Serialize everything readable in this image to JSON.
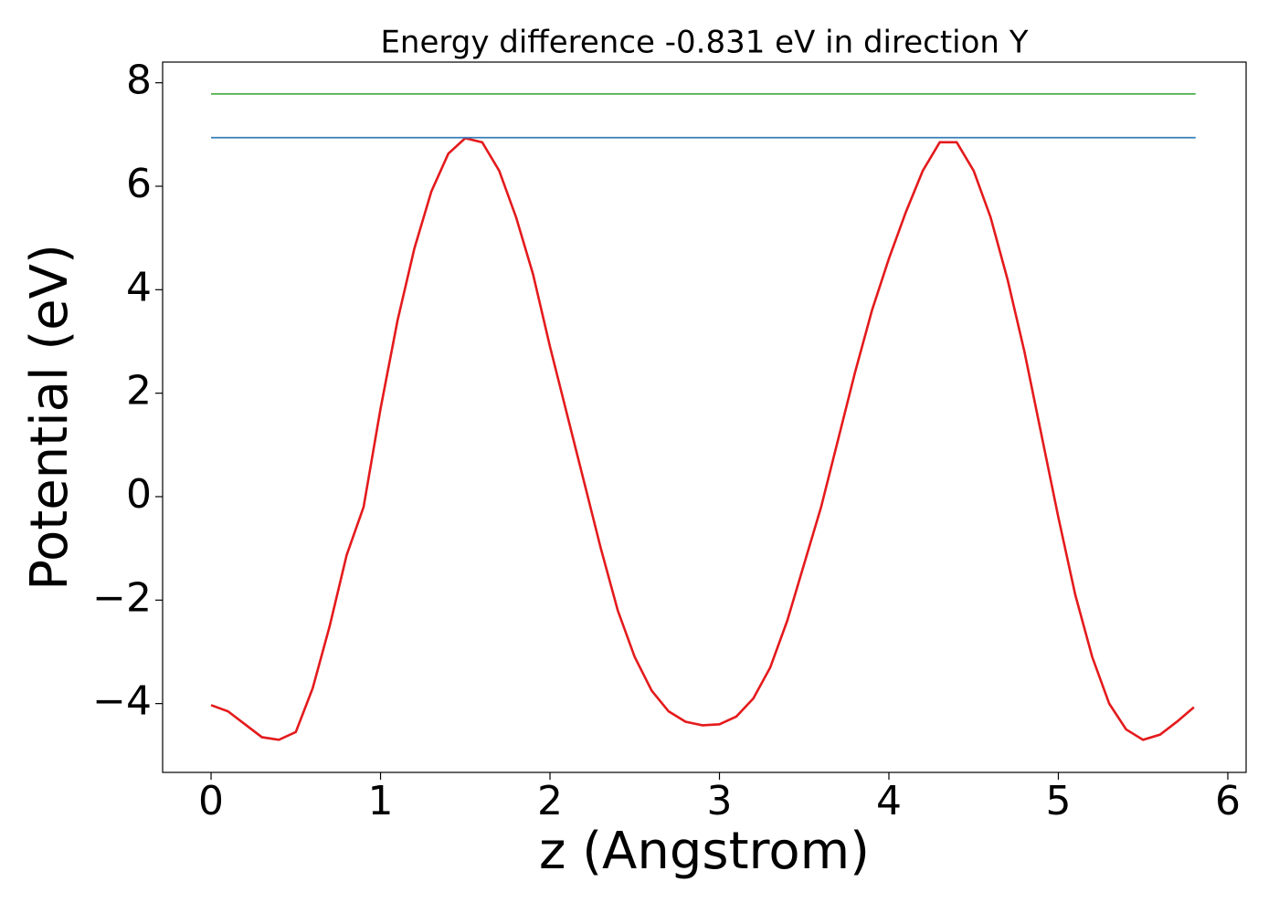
{
  "chart_data": {
    "type": "line",
    "title": "Energy difference -0.831 eV in direction Y",
    "x_label": "z (Angstrom)",
    "y_label": "Potential (eV)",
    "xlim": [
      -0.286,
      6.108
    ],
    "ylim": [
      -5.33,
      8.4
    ],
    "xticks": [
      0,
      1,
      2,
      3,
      4,
      5,
      6
    ],
    "yticks": [
      {
        "value": -4,
        "label": "−4"
      },
      {
        "value": -2,
        "label": "−2"
      },
      0,
      2,
      4,
      6,
      8
    ],
    "grid": false,
    "series": [
      {
        "color": "#e41a1c",
        "x": [
          0,
          0.1,
          0.2,
          0.3,
          0.4,
          0.5,
          0.6,
          0.7,
          0.8,
          0.9,
          1.0,
          1.1,
          1.2,
          1.3,
          1.4,
          1.5,
          1.6,
          1.7,
          1.8,
          1.9,
          2.0,
          2.1,
          2.2,
          2.3,
          2.4,
          2.5,
          2.6,
          2.7,
          2.8,
          2.9,
          3.0,
          3.1,
          3.2,
          3.3,
          3.4,
          3.5,
          3.6,
          3.7,
          3.8,
          3.9,
          4.0,
          4.1,
          4.2,
          4.3,
          4.4,
          4.5,
          4.6,
          4.7,
          4.8,
          4.9,
          5.0,
          5.1,
          5.2,
          5.3,
          5.4,
          5.5,
          5.6,
          5.7,
          5.8
        ],
        "values": [
          -4.03,
          -4.15,
          -4.4,
          -4.65,
          -4.7,
          -4.55,
          -3.7,
          -2.5,
          -1.13,
          -0.2,
          1.7,
          3.4,
          4.8,
          5.9,
          6.63,
          6.93,
          6.85,
          6.3,
          5.4,
          4.3,
          2.9,
          1.6,
          0.3,
          -1.0,
          -2.2,
          -3.1,
          -3.75,
          -4.15,
          -4.35,
          -4.42,
          -4.4,
          -4.25,
          -3.9,
          -3.3,
          -2.4,
          -1.3,
          -0.2,
          1.1,
          2.4,
          3.6,
          4.6,
          5.5,
          6.3,
          6.85,
          6.85,
          6.3,
          5.4,
          4.2,
          2.8,
          1.2,
          -0.4,
          -1.9,
          -3.1,
          -4.0,
          -4.5,
          -4.7,
          -4.6,
          -4.35,
          -4.07
        ]
      },
      {
        "color": "#377eb8",
        "x": [
          0,
          5.81
        ],
        "values": [
          6.94,
          6.94
        ]
      },
      {
        "color": "#4daf4a",
        "x": [
          0,
          5.81
        ],
        "values": [
          7.785,
          7.785
        ]
      }
    ]
  }
}
